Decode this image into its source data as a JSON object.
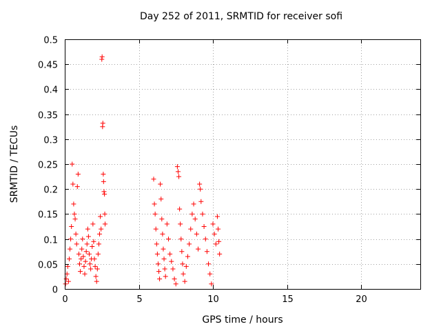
{
  "chart_data": {
    "type": "scatter",
    "title": "Day 252 of 2011, SRMTID for receiver sofi",
    "xlabel": "GPS time / hours",
    "ylabel": "SRMTID / TECUs",
    "xlim": [
      0,
      24
    ],
    "ylim": [
      0,
      0.5
    ],
    "x_ticks": [
      0,
      5,
      10,
      15,
      20
    ],
    "y_ticks": [
      0,
      0.05,
      0.1,
      0.15,
      0.2,
      0.25,
      0.3,
      0.35,
      0.4,
      0.45,
      0.5
    ],
    "x_tick_labels": [
      "0",
      "5",
      "10",
      "15",
      "20"
    ],
    "y_tick_labels": [
      "0",
      "0.05",
      "0.1",
      "0.15",
      "0.2",
      "0.25",
      "0.3",
      "0.35",
      "0.4",
      "0.45",
      "0.5"
    ],
    "grid": true,
    "marker": "+",
    "color": "#ff0000",
    "series": [
      {
        "points": [
          [
            0.05,
            0.01
          ],
          [
            0.1,
            0.02
          ],
          [
            0.15,
            0.03
          ],
          [
            0.2,
            0.045
          ],
          [
            0.25,
            0.015
          ],
          [
            0.3,
            0.06
          ],
          [
            0.35,
            0.08
          ],
          [
            0.4,
            0.1
          ],
          [
            0.45,
            0.125
          ],
          [
            0.5,
            0.25
          ],
          [
            0.55,
            0.21
          ],
          [
            0.6,
            0.17
          ],
          [
            0.65,
            0.15
          ],
          [
            0.7,
            0.14
          ],
          [
            0.75,
            0.11
          ],
          [
            0.8,
            0.09
          ],
          [
            0.85,
            0.205
          ],
          [
            0.9,
            0.23
          ],
          [
            0.95,
            0.07
          ],
          [
            1.0,
            0.05
          ],
          [
            1.05,
            0.035
          ],
          [
            1.1,
            0.06
          ],
          [
            1.15,
            0.08
          ],
          [
            1.2,
            0.1
          ],
          [
            1.25,
            0.065
          ],
          [
            1.3,
            0.045
          ],
          [
            1.35,
            0.03
          ],
          [
            1.4,
            0.055
          ],
          [
            1.45,
            0.075
          ],
          [
            1.5,
            0.09
          ],
          [
            1.55,
            0.12
          ],
          [
            1.6,
            0.105
          ],
          [
            1.65,
            0.07
          ],
          [
            1.7,
            0.05
          ],
          [
            1.75,
            0.04
          ],
          [
            1.8,
            0.06
          ],
          [
            1.85,
            0.085
          ],
          [
            1.9,
            0.13
          ],
          [
            1.95,
            0.095
          ],
          [
            2.0,
            0.06
          ],
          [
            2.05,
            0.045
          ],
          [
            2.1,
            0.025
          ],
          [
            2.15,
            0.015
          ],
          [
            2.2,
            0.04
          ],
          [
            2.25,
            0.07
          ],
          [
            2.3,
            0.09
          ],
          [
            2.35,
            0.11
          ],
          [
            2.4,
            0.145
          ],
          [
            2.45,
            0.12
          ],
          [
            2.5,
            0.46
          ],
          [
            2.52,
            0.465
          ],
          [
            2.55,
            0.325
          ],
          [
            2.57,
            0.332
          ],
          [
            2.6,
            0.23
          ],
          [
            2.62,
            0.215
          ],
          [
            2.65,
            0.195
          ],
          [
            2.68,
            0.19
          ],
          [
            2.7,
            0.15
          ],
          [
            2.72,
            0.13
          ]
        ]
      },
      {
        "points": [
          [
            6.0,
            0.22
          ],
          [
            6.05,
            0.17
          ],
          [
            6.1,
            0.15
          ],
          [
            6.15,
            0.12
          ],
          [
            6.2,
            0.09
          ],
          [
            6.25,
            0.07
          ],
          [
            6.3,
            0.05
          ],
          [
            6.35,
            0.035
          ],
          [
            6.4,
            0.02
          ],
          [
            6.45,
            0.21
          ],
          [
            6.5,
            0.18
          ],
          [
            6.55,
            0.14
          ],
          [
            6.6,
            0.11
          ],
          [
            6.65,
            0.08
          ],
          [
            6.7,
            0.06
          ],
          [
            6.75,
            0.04
          ],
          [
            6.8,
            0.025
          ],
          [
            6.9,
            0.13
          ],
          [
            7.0,
            0.1
          ],
          [
            7.1,
            0.07
          ],
          [
            7.2,
            0.055
          ],
          [
            7.3,
            0.04
          ],
          [
            7.4,
            0.02
          ],
          [
            7.5,
            0.01
          ],
          [
            7.6,
            0.245
          ],
          [
            7.65,
            0.235
          ],
          [
            7.7,
            0.225
          ],
          [
            7.75,
            0.16
          ],
          [
            7.8,
            0.13
          ],
          [
            7.85,
            0.1
          ],
          [
            7.9,
            0.075
          ],
          [
            7.95,
            0.05
          ],
          [
            8.0,
            0.03
          ],
          [
            8.1,
            0.015
          ],
          [
            8.2,
            0.045
          ],
          [
            8.3,
            0.065
          ],
          [
            8.4,
            0.09
          ],
          [
            8.5,
            0.12
          ],
          [
            8.6,
            0.15
          ],
          [
            8.7,
            0.17
          ],
          [
            8.8,
            0.14
          ],
          [
            8.9,
            0.11
          ],
          [
            9.0,
            0.08
          ],
          [
            9.1,
            0.21
          ],
          [
            9.15,
            0.2
          ],
          [
            9.2,
            0.175
          ],
          [
            9.3,
            0.15
          ],
          [
            9.4,
            0.125
          ],
          [
            9.5,
            0.1
          ],
          [
            9.6,
            0.075
          ],
          [
            9.7,
            0.05
          ],
          [
            9.8,
            0.03
          ],
          [
            9.9,
            0.01
          ],
          [
            10.0,
            0.13
          ],
          [
            10.1,
            0.11
          ],
          [
            10.2,
            0.09
          ],
          [
            10.3,
            0.145
          ],
          [
            10.35,
            0.12
          ],
          [
            10.4,
            0.095
          ],
          [
            10.45,
            0.07
          ]
        ]
      }
    ]
  }
}
